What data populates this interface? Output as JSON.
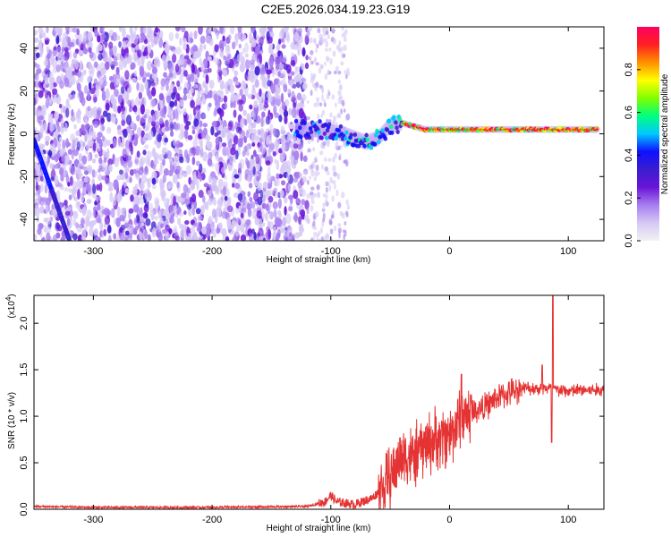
{
  "title": "C2E5.2026.034.19.23.G19",
  "colors": {
    "snr_line": "#e53232",
    "frame": "#000000",
    "colormap": [
      "#f2f2f2",
      "#d6c8f5",
      "#a77ef0",
      "#6a14d8",
      "#3a1ed0",
      "#1010ff",
      "#00c8ff",
      "#00ff80",
      "#80ff00",
      "#ffff00",
      "#ff9000",
      "#ff2020",
      "#ff0060"
    ]
  },
  "chart_data": [
    {
      "type": "heatmap",
      "xlabel": "Height of straight line (km)",
      "ylabel": "Frequency (Hz)",
      "xlim": [
        -350,
        130
      ],
      "ylim": [
        -50,
        50
      ],
      "xticks": [
        -300,
        -200,
        -100,
        0,
        100
      ],
      "yticks": [
        -40,
        -20,
        0,
        20,
        40
      ],
      "colorbar": {
        "label": "Normalized spectral amplitude",
        "range": [
          0.0,
          1.0
        ],
        "ticks": [
          "0.0",
          "0.2",
          "0.4",
          "0.6",
          "0.8"
        ],
        "tick_values": [
          0.0,
          0.2,
          0.4,
          0.6,
          0.8
        ]
      },
      "features": {
        "noise_region_x": [
          -350,
          -120
        ],
        "sparse_noise_x": [
          -120,
          -85
        ],
        "signal_band": {
          "x": [
            -130,
            125,
            -110,
            -90,
            -70,
            -60,
            -50,
            -40,
            -20,
            0,
            20,
            50,
            80,
            100,
            125
          ],
          "freq": [
            2,
            2,
            2,
            0,
            -4,
            -2,
            4,
            5,
            2,
            2,
            2,
            2,
            2,
            2,
            2
          ]
        },
        "diagonal_track": {
          "x": [
            -350,
            -320
          ],
          "freq": [
            -3,
            -50
          ]
        }
      }
    },
    {
      "type": "line",
      "xlabel": "Height of straight line (km)",
      "ylabel": "SNR (10 * v/v)",
      "yexponent_label": "(x10",
      "yexponent_power": "4",
      "yexponent_close": ")",
      "xlim": [
        -350,
        130
      ],
      "ylim": [
        0,
        2.3
      ],
      "xticks": [
        -300,
        -200,
        -100,
        0,
        100
      ],
      "yticks": [
        "0.0",
        "0.5",
        "1.0",
        "1.5",
        "2.0"
      ],
      "ytick_values": [
        0.0,
        0.5,
        1.0,
        1.5,
        2.0
      ],
      "series": [
        {
          "x": [
            -350,
            -300,
            -200,
            -120,
            -105,
            -100,
            -95,
            -80,
            -65,
            -55,
            -45,
            -40,
            -30,
            -20,
            -10,
            0,
            5,
            10,
            20,
            30,
            40,
            50,
            60,
            70,
            80,
            85,
            88,
            90,
            100,
            110,
            120,
            130
          ],
          "y": [
            0.03,
            0.02,
            0.02,
            0.03,
            0.08,
            0.15,
            0.08,
            0.05,
            0.12,
            0.25,
            0.45,
            0.6,
            0.55,
            0.7,
            0.75,
            0.8,
            0.9,
            1.0,
            1.05,
            1.1,
            1.2,
            1.25,
            1.3,
            1.3,
            1.3,
            1.3,
            1.3,
            1.28,
            1.27,
            1.28,
            1.28,
            1.28
          ]
        }
      ],
      "peaks": [
        {
          "x": 10,
          "y": 1.45
        },
        {
          "x": 78,
          "y": 1.55
        },
        {
          "x": 87,
          "y": 2.3
        },
        {
          "x": 86,
          "y": 0.72
        }
      ]
    }
  ]
}
